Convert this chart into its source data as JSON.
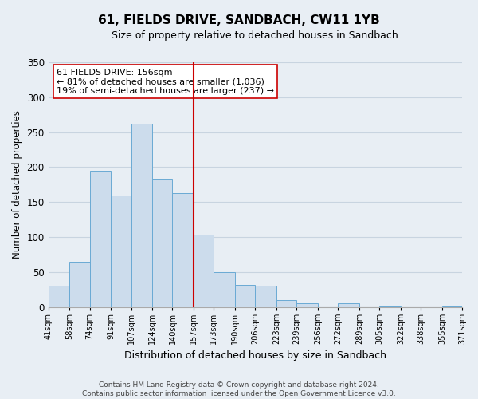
{
  "title": "61, FIELDS DRIVE, SANDBACH, CW11 1YB",
  "subtitle": "Size of property relative to detached houses in Sandbach",
  "xlabel": "Distribution of detached houses by size in Sandbach",
  "ylabel": "Number of detached properties",
  "bar_edges": [
    41,
    58,
    74,
    91,
    107,
    124,
    140,
    157,
    173,
    190,
    206,
    223,
    239,
    256,
    272,
    289,
    305,
    322,
    338,
    355,
    371
  ],
  "bar_heights": [
    30,
    65,
    195,
    160,
    262,
    184,
    163,
    103,
    50,
    32,
    30,
    10,
    5,
    0,
    5,
    0,
    1,
    0,
    0,
    1
  ],
  "bar_color": "#ccdcec",
  "bar_edge_color": "#6aaad4",
  "property_line_x": 157,
  "property_line_color": "#cc0000",
  "annotation_title": "61 FIELDS DRIVE: 156sqm",
  "annotation_line1": "← 81% of detached houses are smaller (1,036)",
  "annotation_line2": "19% of semi-detached houses are larger (237) →",
  "annotation_box_facecolor": "#ffffff",
  "annotation_box_edgecolor": "#cc0000",
  "ylim": [
    0,
    350
  ],
  "yticks": [
    0,
    50,
    100,
    150,
    200,
    250,
    300,
    350
  ],
  "tick_labels": [
    "41sqm",
    "58sqm",
    "74sqm",
    "91sqm",
    "107sqm",
    "124sqm",
    "140sqm",
    "157sqm",
    "173sqm",
    "190sqm",
    "206sqm",
    "223sqm",
    "239sqm",
    "256sqm",
    "272sqm",
    "289sqm",
    "305sqm",
    "322sqm",
    "338sqm",
    "355sqm",
    "371sqm"
  ],
  "footer_line1": "Contains HM Land Registry data © Crown copyright and database right 2024.",
  "footer_line2": "Contains public sector information licensed under the Open Government Licence v3.0.",
  "fig_facecolor": "#e8eef4",
  "plot_facecolor": "#e8eef4",
  "grid_color": "#c8d4e0",
  "title_fontsize": 11,
  "subtitle_fontsize": 9,
  "ylabel_fontsize": 8.5,
  "xlabel_fontsize": 9,
  "tick_fontsize": 7,
  "footer_fontsize": 6.5
}
